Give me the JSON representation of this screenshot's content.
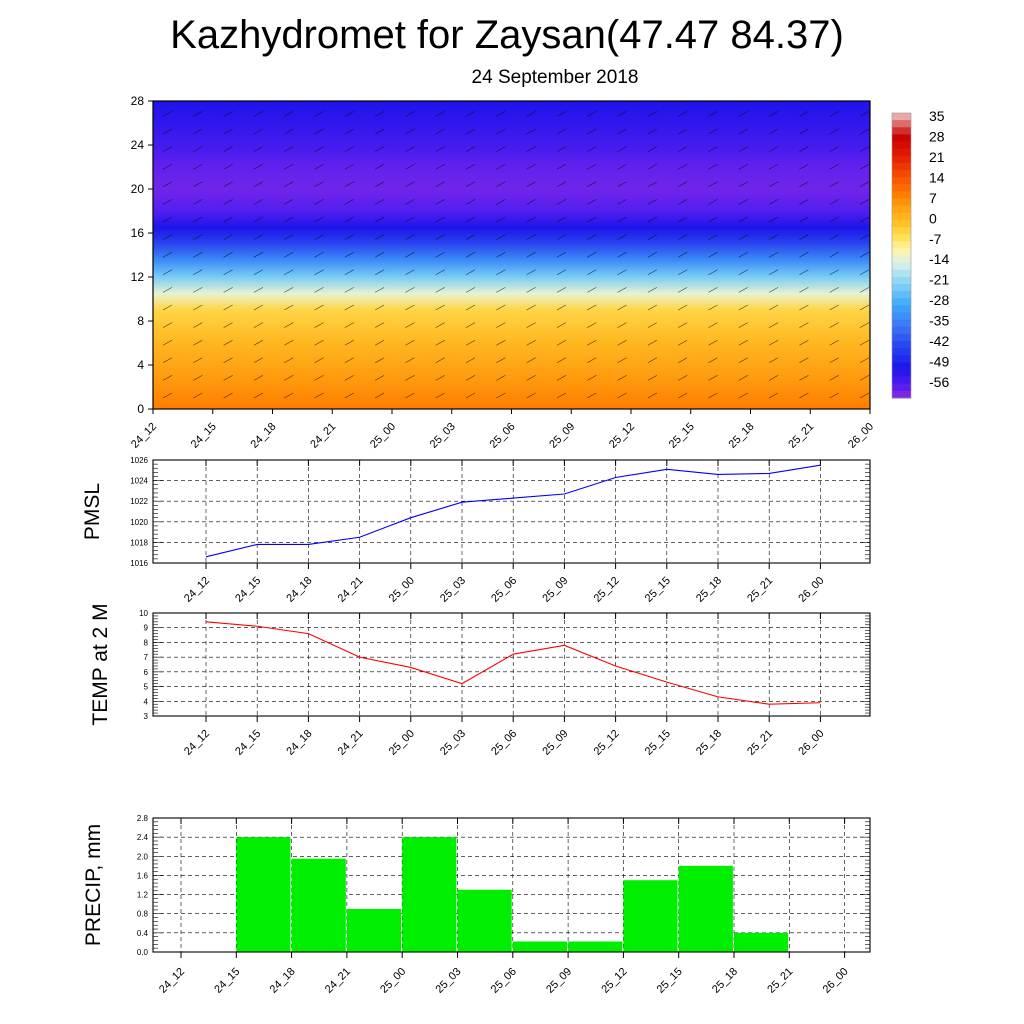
{
  "title": "Kazhydromet for Zaysan(47.47 84.37)",
  "subtitle": "24 September 2018",
  "time_labels": [
    "24_12",
    "24_15",
    "24_18",
    "24_21",
    "25_00",
    "25_03",
    "25_06",
    "25_09",
    "25_12",
    "25_15",
    "25_18",
    "25_21",
    "26_00"
  ],
  "chart_data": [
    {
      "type": "heatmap",
      "name": "temperature-wind cross section",
      "x": [
        "24_12",
        "24_15",
        "24_18",
        "24_21",
        "25_00",
        "25_03",
        "25_06",
        "25_09",
        "25_12",
        "25_15",
        "25_18",
        "25_21",
        "26_00"
      ],
      "yticks": [
        0,
        4,
        8,
        12,
        16,
        20,
        24,
        28
      ],
      "ylim": [
        0,
        28
      ],
      "colorbar_labels": [
        "35",
        "28",
        "21",
        "14",
        "7",
        "0",
        "-7",
        "-14",
        "-21",
        "-28",
        "-35",
        "-42",
        "-49",
        "-56"
      ],
      "colorbar_range": [
        -60,
        38
      ],
      "profile": [
        {
          "level": 0,
          "value": 10
        },
        {
          "level": 3,
          "value": 6
        },
        {
          "level": 6,
          "value": 2
        },
        {
          "level": 9,
          "value": -3
        },
        {
          "level": 10.5,
          "value": -12
        },
        {
          "level": 12,
          "value": -22
        },
        {
          "level": 13.5,
          "value": -32
        },
        {
          "level": 15,
          "value": -42
        },
        {
          "level": 16.5,
          "value": -50
        },
        {
          "level": 18,
          "value": -56
        },
        {
          "level": 20,
          "value": -58
        },
        {
          "level": 22,
          "value": -57
        },
        {
          "level": 24,
          "value": -54
        },
        {
          "level": 26,
          "value": -52
        },
        {
          "level": 28,
          "value": -50
        }
      ],
      "grid": false
    },
    {
      "type": "line",
      "ylabel": "PMSL",
      "categories": [
        "24_12",
        "24_15",
        "24_18",
        "24_21",
        "25_00",
        "25_03",
        "25_06",
        "25_09",
        "25_12",
        "25_15",
        "25_18",
        "25_21",
        "26_00"
      ],
      "values": [
        1016.6,
        1017.8,
        1017.8,
        1018.5,
        1020.4,
        1021.9,
        1022.3,
        1022.7,
        1024.3,
        1025.1,
        1024.6,
        1024.7,
        1025.5
      ],
      "yticks": [
        1016,
        1018,
        1020,
        1022,
        1024,
        1026
      ],
      "ylim": [
        1016,
        1026
      ],
      "color": "#0000ff",
      "grid": true
    },
    {
      "type": "line",
      "ylabel": "TEMP at 2 M",
      "categories": [
        "24_12",
        "24_15",
        "24_18",
        "24_21",
        "25_00",
        "25_03",
        "25_06",
        "25_09",
        "25_12",
        "25_15",
        "25_18",
        "25_21",
        "26_00"
      ],
      "values": [
        9.4,
        9.1,
        8.6,
        7.0,
        6.3,
        5.2,
        7.2,
        7.8,
        6.4,
        5.3,
        4.3,
        3.8,
        3.9
      ],
      "yticks": [
        3,
        4,
        5,
        6,
        7,
        8,
        9,
        10
      ],
      "ylim": [
        3,
        10
      ],
      "color": "#ff0000",
      "grid": true
    },
    {
      "type": "bar",
      "ylabel": "PRECIP, mm",
      "categories": [
        "24_12",
        "24_15",
        "24_18",
        "24_21",
        "25_00",
        "25_03",
        "25_06",
        "25_09",
        "25_12",
        "25_15",
        "25_18",
        "25_21",
        "26_00"
      ],
      "values": [
        0,
        2.4,
        1.95,
        0.9,
        2.4,
        1.3,
        0.22,
        0.22,
        1.5,
        1.8,
        0.4,
        0,
        0
      ],
      "yticks": [
        "0.0",
        "0.4",
        "0.8",
        "1.2",
        "1.6",
        "2.0",
        "2.4",
        "2.8"
      ],
      "ylim": [
        0,
        2.8
      ],
      "color": "#00ee00",
      "grid": true
    }
  ]
}
